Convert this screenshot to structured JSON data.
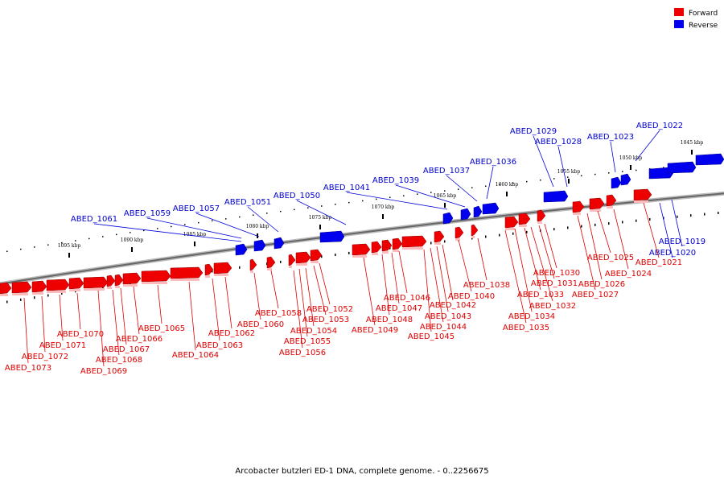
{
  "legend": {
    "forward_label": "Forward",
    "reverse_label": "Reverse",
    "forward_color": "#ee0000",
    "reverse_color": "#0000ee"
  },
  "caption": "Arcobacter butzleri ED-1 DNA, complete genome. - 0..2256675",
  "scale_labels": [
    "1045 kbp",
    "1050 kbp",
    "1055 kbp",
    "1060 kbp",
    "1065 kbp",
    "1070 kbp",
    "1075 kbp",
    "1080 kbp",
    "1085 kbp",
    "1090 kbp",
    "1095 kbp"
  ],
  "reverse_genes": [
    "ABED_1019",
    "ABED_1020",
    "ABED_1022",
    "ABED_1023",
    "ABED_1028",
    "ABED_1029",
    "ABED_1036",
    "ABED_1037",
    "ABED_1039",
    "ABED_1041",
    "ABED_1050",
    "ABED_1051",
    "ABED_1057",
    "ABED_1059",
    "ABED_1061"
  ],
  "forward_genes": [
    "ABED_1021",
    "ABED_1024",
    "ABED_1025",
    "ABED_1026",
    "ABED_1027",
    "ABED_1030",
    "ABED_1031",
    "ABED_1032",
    "ABED_1033",
    "ABED_1034",
    "ABED_1035",
    "ABED_1038",
    "ABED_1040",
    "ABED_1042",
    "ABED_1043",
    "ABED_1044",
    "ABED_1045",
    "ABED_1046",
    "ABED_1047",
    "ABED_1048",
    "ABED_1049",
    "ABED_1052",
    "ABED_1053",
    "ABED_1054",
    "ABED_1055",
    "ABED_1056",
    "ABED_1058",
    "ABED_1060",
    "ABED_1062",
    "ABED_1063",
    "ABED_1064",
    "ABED_1065",
    "ABED_1066",
    "ABED_1067",
    "ABED_1068",
    "ABED_1069",
    "ABED_1070",
    "ABED_1071",
    "ABED_1072",
    "ABED_1073"
  ]
}
